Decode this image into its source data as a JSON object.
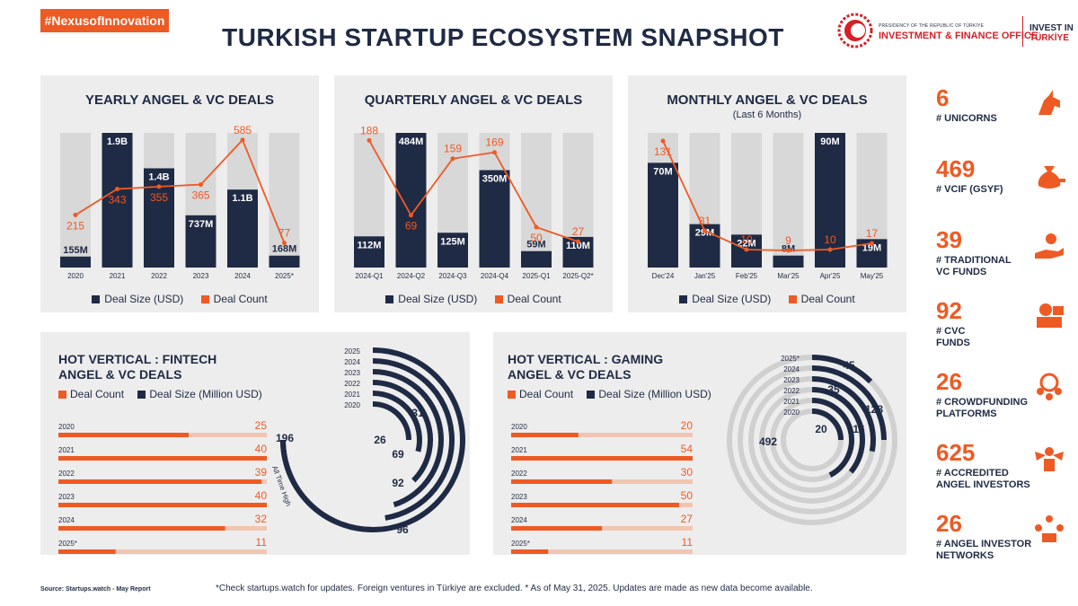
{
  "header": {
    "hashtag": "#NexusofInnovation",
    "title": "TURKISH STARTUP ECOSYSTEM SNAPSHOT",
    "logo_small": "PRESIDENCY OF THE REPUBLIC OF TÜRKİYE",
    "logo_big": "INVESTMENT & FINANCE OFFICE",
    "logo_invest_line1": "INVEST IN",
    "logo_invest_line2": "TÜRKİYE"
  },
  "colors": {
    "navy": "#1f2a44",
    "orange": "#ee5a24",
    "light_bar": "#d8d8d8",
    "panel": "#ededed",
    "light_orange": "#f2c5b2"
  },
  "legend": {
    "deal_size": "Deal Size (USD)",
    "deal_count": "Deal Count",
    "deal_count_hv": "Deal Count",
    "deal_size_hv": "Deal Size (Million USD)"
  },
  "chart_data": [
    {
      "id": "yearly",
      "type": "bar",
      "title": "YEARLY ANGEL & VC DEALS",
      "categories": [
        "2020",
        "2021",
        "2022",
        "2023",
        "2024",
        "2025*"
      ],
      "series": [
        {
          "name": "Deal Size (USD)",
          "values": [
            155,
            1900,
            1400,
            737,
            1100,
            168
          ],
          "labels": [
            "155M",
            "1.9B",
            "1.4B",
            "737M",
            "1.1B",
            "168M"
          ]
        },
        {
          "name": "Deal Count",
          "values": [
            215,
            343,
            355,
            365,
            585,
            77
          ]
        }
      ]
    },
    {
      "id": "quarterly",
      "type": "bar",
      "title": "QUARTERLY ANGEL & VC DEALS",
      "categories": [
        "2024-Q1",
        "2024-Q2",
        "2024-Q3",
        "2024-Q4",
        "2025-Q1",
        "2025-Q2*"
      ],
      "series": [
        {
          "name": "Deal Size (USD)",
          "values": [
            112,
            484,
            125,
            350,
            59,
            110
          ],
          "labels": [
            "112M",
            "484M",
            "125M",
            "350M",
            "59M",
            "110M"
          ]
        },
        {
          "name": "Deal Count",
          "values": [
            188,
            69,
            159,
            169,
            50,
            27
          ]
        }
      ]
    },
    {
      "id": "monthly",
      "type": "bar",
      "title": "MONTHLY ANGEL & VC DEALS",
      "subtitle": "(Last 6 Months)",
      "categories": [
        "Dec'24",
        "Jan'25",
        "Feb'25",
        "Mar'25",
        "Apr'25",
        "May'25"
      ],
      "series": [
        {
          "name": "Deal Size (USD)",
          "values": [
            70,
            29,
            22,
            8,
            90,
            19
          ],
          "labels": [
            "70M",
            "29M",
            "22M",
            "8M",
            "90M",
            "19M"
          ]
        },
        {
          "name": "Deal Count",
          "values": [
            131,
            31,
            10,
            9,
            10,
            17
          ]
        }
      ]
    },
    {
      "id": "fintech",
      "type": "bar",
      "title": "HOT VERTICAL : FINTECH",
      "title2": "ANGEL & VC DEALS",
      "categories": [
        "2020",
        "2021",
        "2022",
        "2023",
        "2024",
        "2025*"
      ],
      "series": [
        {
          "name": "Deal Count",
          "values": [
            25,
            40,
            39,
            40,
            32,
            11
          ]
        },
        {
          "name": "Deal Size (Million USD)",
          "values": [
            26,
            69,
            92,
            96,
            31,
            31
          ]
        }
      ],
      "all_time_high_value": 196,
      "all_time_high_label": "All Time High",
      "ring_years": [
        "2025",
        "2024",
        "2023",
        "2022",
        "2021",
        "2020"
      ]
    },
    {
      "id": "gaming",
      "type": "bar",
      "title": "HOT VERTICAL : GAMING",
      "title2": "ANGEL & VC DEALS",
      "categories": [
        "2020",
        "2021",
        "2022",
        "2023",
        "2024",
        "2025*"
      ],
      "series": [
        {
          "name": "Deal Count",
          "values": [
            20,
            54,
            30,
            50,
            27,
            11
          ]
        },
        {
          "name": "Deal Size (Million USD)",
          "values": [
            20,
            116,
            128,
            35,
            492,
            45
          ]
        }
      ],
      "ring_years": [
        "2025*",
        "2024",
        "2023",
        "2022",
        "2021",
        "2020"
      ]
    }
  ],
  "stats": [
    {
      "num": "6",
      "label": [
        "# UNICORNS"
      ],
      "icon": "unicorn-icon"
    },
    {
      "num": "469",
      "label": [
        "# VCIF (GSYF)"
      ],
      "icon": "money-bag-icon"
    },
    {
      "num": "39",
      "label": [
        "# TRADITIONAL",
        "VC FUNDS"
      ],
      "icon": "hand-money-icon"
    },
    {
      "num": "92",
      "label": [
        "# CVC",
        "FUNDS"
      ],
      "icon": "money-stack-icon"
    },
    {
      "num": "26",
      "label": [
        "# CROWDFUNDING",
        "PLATFORMS"
      ],
      "icon": "crowd-icon"
    },
    {
      "num": "625",
      "label": [
        "# ACCREDITED",
        "ANGEL INVESTORS"
      ],
      "icon": "angel-investor-icon"
    },
    {
      "num": "26",
      "label": [
        "# ANGEL INVESTOR",
        "NETWORKS"
      ],
      "icon": "network-icon"
    }
  ],
  "footer": {
    "source": "Source: Startups.watch - May Report",
    "note": "*Check startups.watch for updates. Foreign ventures in Türkiye are excluded. * As of May 31, 2025. Updates are made as new data become available."
  }
}
